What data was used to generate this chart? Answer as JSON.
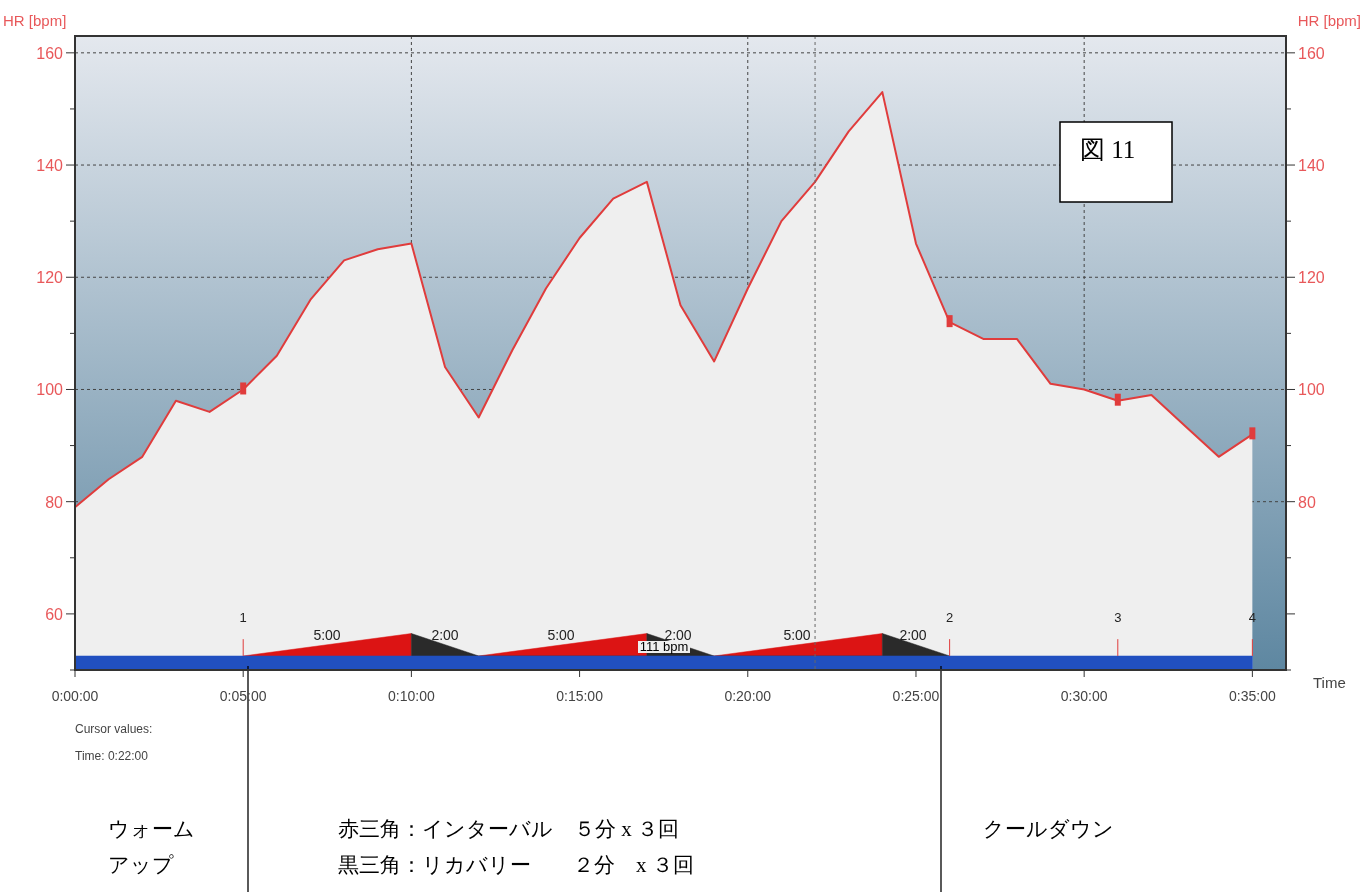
{
  "chart_data": {
    "type": "area",
    "xlabel": "Time",
    "ylabel": "HR [bpm]",
    "y2label": "HR [bpm]",
    "xlim": [
      0,
      36
    ],
    "ylim": [
      50,
      163
    ],
    "y2lim": [
      50,
      163
    ],
    "xticks": [
      {
        "value": 0,
        "label": "0:00:00"
      },
      {
        "value": 5,
        "label": "0:05:00"
      },
      {
        "value": 10,
        "label": "0:10:00"
      },
      {
        "value": 15,
        "label": "0:15:00"
      },
      {
        "value": 20,
        "label": "0:20:00"
      },
      {
        "value": 25,
        "label": "0:25:00"
      },
      {
        "value": 30,
        "label": "0:30:00"
      },
      {
        "value": 35,
        "label": "0:35:00"
      }
    ],
    "yticks": [
      60,
      80,
      100,
      120,
      140,
      160
    ],
    "y2ticks": [
      {
        "value": 60,
        "label": null
      },
      80,
      100,
      120,
      140,
      160
    ],
    "grid": true,
    "line_style": "solid",
    "series": [
      {
        "color": "#e03c3c",
        "x": [
          0,
          1,
          2,
          3,
          4,
          5,
          6,
          7,
          8,
          9,
          10,
          11,
          12,
          13,
          14,
          15,
          16,
          17,
          18,
          19,
          20,
          21,
          22,
          23,
          24,
          25,
          26,
          27,
          28,
          29,
          30,
          31,
          32,
          33,
          34,
          35
        ],
        "values": [
          79,
          84,
          88,
          98,
          96,
          100,
          106,
          116,
          123,
          125,
          126,
          104,
          95,
          107,
          118,
          127,
          134,
          137,
          115,
          105,
          118,
          130,
          137,
          146,
          153,
          126,
          112,
          109,
          109,
          101,
          100,
          98,
          99,
          93.5,
          88,
          92
        ]
      },
      {
        "type": "area",
        "color": "#dc1414",
        "x": [
          5,
          10,
          10,
          12,
          17,
          17,
          19,
          24,
          24
        ],
        "values": [
          52.5,
          56.5,
          52.5,
          52.5,
          56.5,
          52.5,
          52.5,
          56.5,
          52.5
        ]
      },
      {
        "type": "area",
        "color": "#2a2a2a",
        "x": [
          10,
          12,
          17,
          17,
          19,
          24,
          24,
          26
        ],
        "values": [
          56.5,
          52.5,
          52.5,
          56.5,
          52.5,
          52.5,
          56.5,
          52.5
        ]
      },
      {
        "type": "area",
        "color": "#2150c0",
        "x": [
          0,
          35
        ],
        "values": [
          52.5,
          52.5
        ]
      },
      {
        "type": "scatter",
        "color": "#e03c3c",
        "marker": "square",
        "x": [
          5,
          26,
          31,
          35
        ],
        "values": [
          100,
          112,
          98,
          92
        ]
      }
    ],
    "ref_lines": [
      {
        "axis": "x",
        "value": 22,
        "color": "#666666",
        "line_style": "dashed"
      }
    ],
    "annotations": [
      "図 11",
      "Cursor values:",
      "Time: 0:22:00",
      "ウォーム",
      "アップ",
      "赤三角：インターバル　５分 x ３回",
      "黒三角：リカバリー　　２分　x ３回",
      "クールダウン",
      "1",
      "2",
      "3",
      "4",
      "5:00",
      "2:00",
      "5:00",
      "2:00",
      "5:00",
      "2:00",
      "111 bpm"
    ]
  }
}
